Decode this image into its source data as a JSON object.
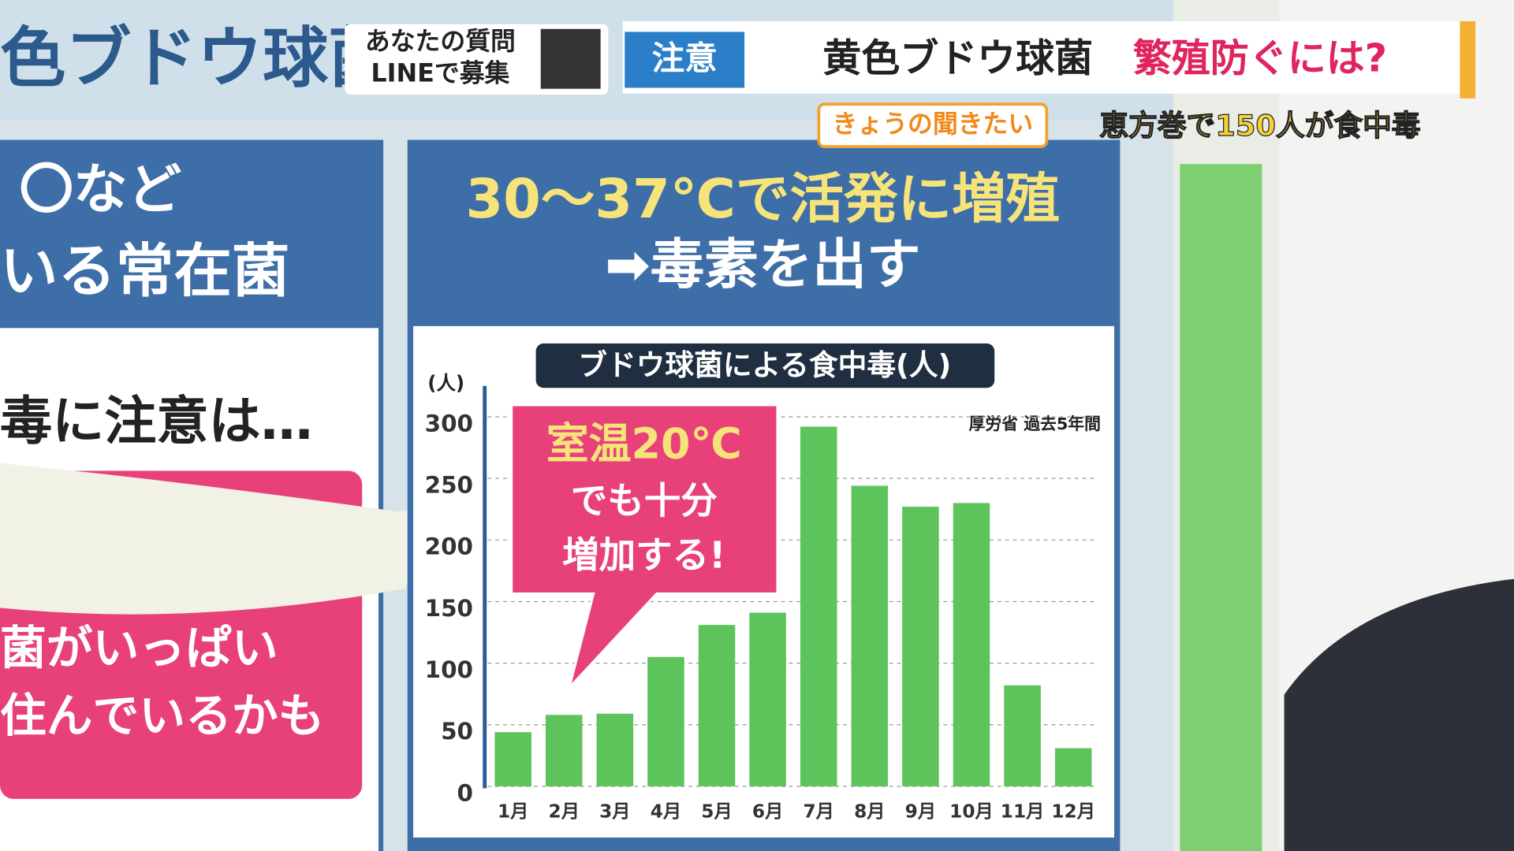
{
  "banner": {
    "left_title": "色ブドウ球菌",
    "question_1": "あなたの質問",
    "question_2": "LINEで募集",
    "tag": "注意",
    "headline_1": "黄色ブドウ球菌",
    "headline_2": "繁殖防ぐには?",
    "corner": "きょうの聞きたい",
    "news": "恵方巻で150人が食中毒"
  },
  "left_panel": {
    "line_1": "〇など",
    "line_2": "いる常在菌",
    "line_3": "毒に注意は…",
    "line_4": "菌がいっぱい",
    "line_5": "住んでいるかも"
  },
  "right_panel": {
    "heading_1": "30〜37℃で活発に増殖",
    "heading_2": "➡毒素を出す"
  },
  "chart_data": {
    "type": "bar",
    "title": "ブドウ球菌による食中毒(人)",
    "y_label": "(人)",
    "source": "厚労省 過去5年間",
    "annotation": [
      "室温20℃",
      "でも十分",
      "増加する!"
    ],
    "categories": [
      "1月",
      "2月",
      "3月",
      "4月",
      "5月",
      "6月",
      "7月",
      "8月",
      "9月",
      "10月",
      "11月",
      "12月"
    ],
    "values": [
      44,
      58,
      59,
      105,
      131,
      141,
      292,
      244,
      227,
      230,
      82,
      31
    ],
    "color": "#5cc45a",
    "ylim": [
      0,
      300
    ],
    "yticks": [
      0,
      50,
      100,
      150,
      200,
      250,
      300
    ],
    "grid": true
  }
}
